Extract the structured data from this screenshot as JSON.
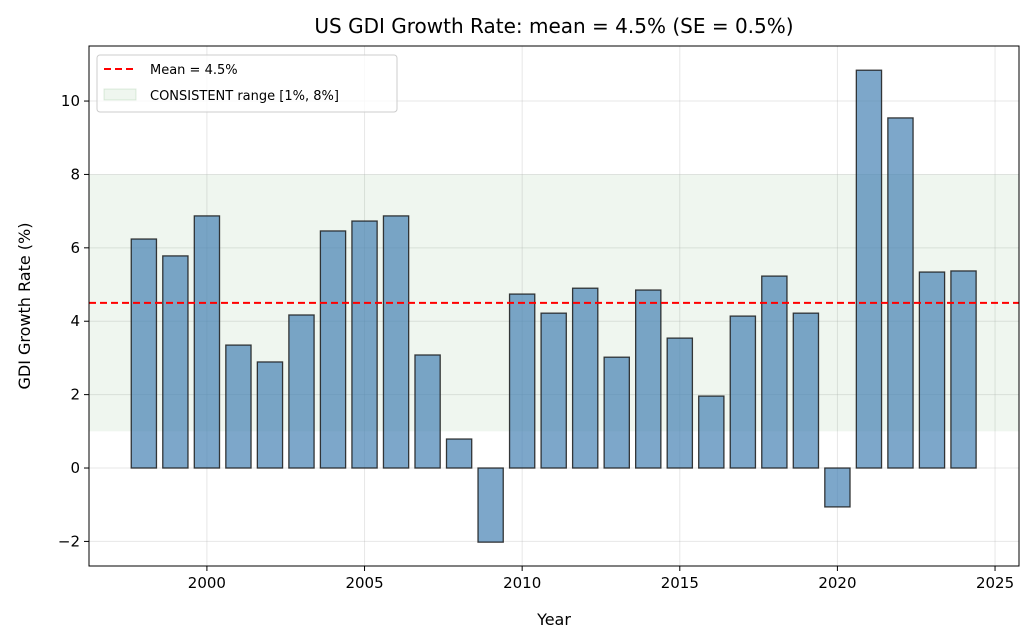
{
  "chart_data": {
    "type": "bar",
    "title": "US GDI Growth Rate: mean = 4.5% (SE = 0.5%)",
    "xlabel": "Year",
    "ylabel": "GDI Growth Rate (%)",
    "xlim": [
      1996.26,
      2025.76
    ],
    "ylim": [
      -2.67,
      11.5
    ],
    "xticks": [
      2000,
      2005,
      2010,
      2015,
      2020,
      2025
    ],
    "yticks": [
      -2,
      0,
      2,
      4,
      6,
      8,
      10
    ],
    "ytick_labels": [
      "−2",
      "0",
      "2",
      "4",
      "6",
      "8",
      "10"
    ],
    "grid": true,
    "legend_position": "top-left",
    "x": [
      1998,
      1999,
      2000,
      2001,
      2002,
      2003,
      2004,
      2005,
      2006,
      2007,
      2008,
      2009,
      2010,
      2011,
      2012,
      2013,
      2014,
      2015,
      2016,
      2017,
      2018,
      2019,
      2020,
      2021,
      2022,
      2023,
      2024
    ],
    "values": [
      6.24,
      5.78,
      6.87,
      3.35,
      2.89,
      4.17,
      6.46,
      6.73,
      6.87,
      3.08,
      0.79,
      -2.02,
      4.74,
      4.22,
      4.9,
      3.02,
      4.85,
      3.54,
      1.96,
      4.14,
      5.23,
      4.22,
      -1.06,
      10.84,
      9.54,
      5.34,
      5.37
    ],
    "mean": 4.5,
    "mean_label": "Mean = 4.5%",
    "range": [
      1,
      8
    ],
    "range_label": "CONSISTENT range [1%, 8%]",
    "colors": {
      "bar": "#4682b4",
      "bar_edge": "#1a1a1a",
      "mean": "#ff0000",
      "range": "#2e8b2e"
    }
  }
}
